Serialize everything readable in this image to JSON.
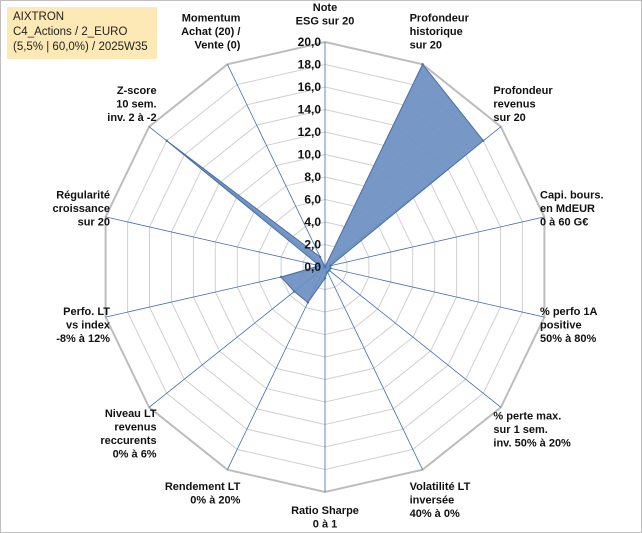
{
  "header": {
    "line1": "AIXTRON",
    "line2": "C4_Actions / 2_EURO",
    "line3": "(5,5% | 60,0%) / 2025W35"
  },
  "colors": {
    "fill": "#6b8fc2",
    "stroke": "#4a6fa5",
    "grid": "#d0d0d0",
    "spoke": "#3d6db5",
    "header_bg": "#fde9b6"
  },
  "chart_data": {
    "type": "radar",
    "rlim": [
      0,
      20
    ],
    "ticks": [
      "0,0",
      "2,0",
      "4,0",
      "6,0",
      "8,0",
      "10,0",
      "12,0",
      "14,0",
      "16,0",
      "18,0",
      "20,0"
    ],
    "grid": true,
    "axes": [
      [
        "Note",
        "ESG sur 20"
      ],
      [
        "Profondeur",
        "historique",
        "sur 20"
      ],
      [
        "Profondeur",
        "revenus",
        "sur 20"
      ],
      [
        "Capi. bours.",
        "en MdEUR",
        "0 à 60 G€"
      ],
      [
        "% perfo 1A",
        "positive",
        "50% à 80%"
      ],
      [
        "% perte max.",
        "sur 1 sem.",
        "inv. 50% à 20%"
      ],
      [
        "Volatilité LT",
        "inversée",
        "40% à 0%"
      ],
      [
        "Ratio Sharpe",
        "0 à 1"
      ],
      [
        "Rendement LT",
        "0% à 20%"
      ],
      [
        "Niveau LT",
        "revenus",
        "reccurents",
        "0% à 6%"
      ],
      [
        "Perfo. LT",
        "vs index",
        "-8% à 12%"
      ],
      [
        "Régularité",
        "croissance",
        "sur 20"
      ],
      [
        "Z-score",
        "10 sem.",
        "inv. 2 à -2"
      ],
      [
        "Momentum",
        "Achat (20) /",
        "Vente (0)"
      ]
    ],
    "values": [
      0,
      20,
      18,
      0.5,
      0.5,
      0.5,
      0.5,
      1,
      3.5,
      3.5,
      4,
      0.5,
      18,
      1
    ]
  }
}
